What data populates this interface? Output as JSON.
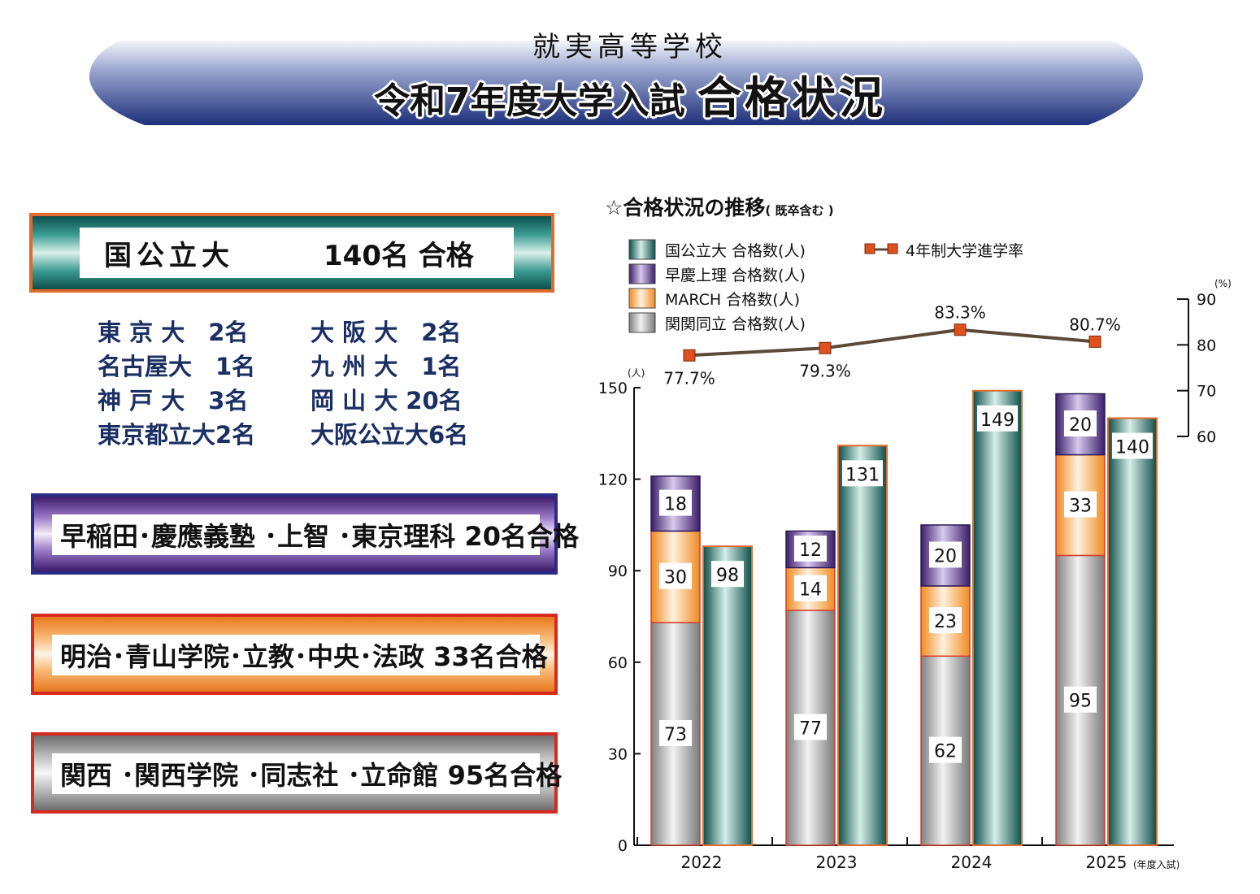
{
  "header": {
    "school": "就実高等学校",
    "title_prefix": "令和7年度大学入試",
    "title_suffix": "合格状況"
  },
  "national": {
    "label": "国公立大",
    "result": "140名 合格",
    "universities": [
      [
        "東 京 大　2名",
        "大 阪 大　2名"
      ],
      [
        "名古屋大　1名",
        "九 州 大　1名"
      ],
      [
        "神 戸 大　3名",
        "岡 山 大 20名"
      ],
      [
        "東京都立大2名",
        "大阪公立大6名"
      ]
    ]
  },
  "groups": [
    {
      "text": "早稲田･慶應義塾 ･上智 ･東京理科 20名合格"
    },
    {
      "text": "明治･青山学院･立教･中央･法政 33名合格"
    },
    {
      "text": "関西 ･関西学院 ･同志社 ･立命館 95名合格"
    }
  ],
  "chart_title": "☆合格状況の推移",
  "chart_title_note": "( 既卒含む )",
  "chart_data": {
    "type": "bar",
    "categories": [
      "2022",
      "2023",
      "2024",
      "2025"
    ],
    "x_unit_note": "(年度入試)",
    "stacked_series": [
      {
        "name": "関関同立 合格数(人)",
        "values": [
          73,
          77,
          62,
          95
        ],
        "color": "#b5b5b5"
      },
      {
        "name": "MARCH 合格数(人)",
        "values": [
          30,
          14,
          23,
          33
        ],
        "color": "#f6a24e"
      },
      {
        "name": "早慶上理 合格数(人)",
        "values": [
          18,
          12,
          20,
          20
        ],
        "color": "#6a3f9a"
      }
    ],
    "national_series": {
      "name": "国公立大 合格数(人)",
      "values": [
        98,
        131,
        149,
        140
      ],
      "color": "#2f8a82"
    },
    "line_series": {
      "name": "4年制大学進学率",
      "values": [
        77.7,
        79.3,
        83.3,
        80.7
      ],
      "labels": [
        "77.7%",
        "79.3%",
        "83.3%",
        "80.7%"
      ],
      "color": "#e0501c"
    },
    "y_left": {
      "unit": "(人)",
      "min": 0,
      "max": 150,
      "ticks": [
        0,
        30,
        60,
        90,
        120,
        150
      ]
    },
    "y_right": {
      "unit": "(%)",
      "min": 60,
      "max": 90,
      "ticks": [
        60,
        70,
        80,
        90
      ]
    }
  }
}
